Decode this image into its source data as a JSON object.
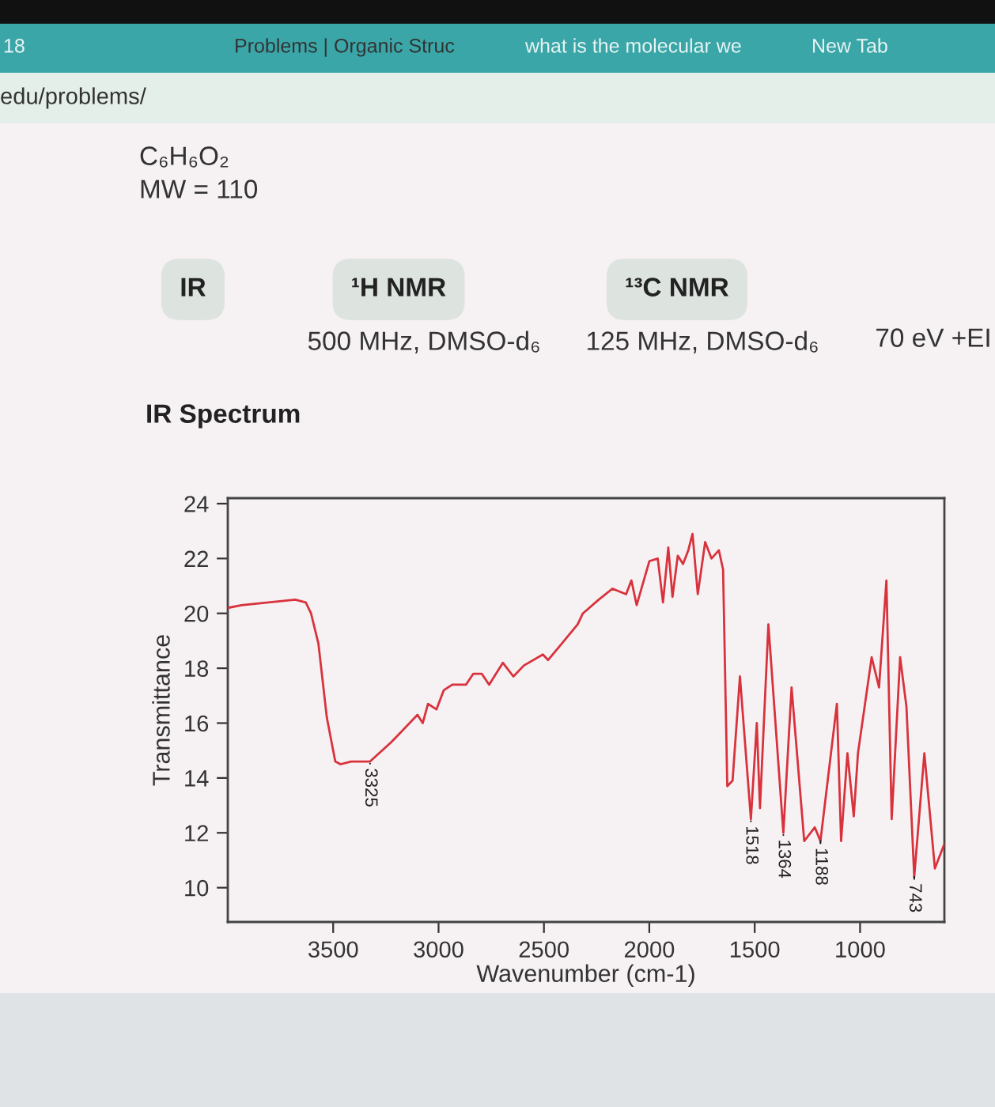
{
  "chart_data": {
    "type": "line",
    "title": "IR Spectrum",
    "xlabel": "Wavenumber (cm-1)",
    "ylabel": "Transmittance",
    "x": [
      4000,
      3935,
      3680,
      3630,
      3605,
      3570,
      3530,
      3490,
      3465,
      3415,
      3355,
      3325,
      3225,
      3100,
      3075,
      3050,
      3010,
      2975,
      2935,
      2870,
      2835,
      2795,
      2760,
      2695,
      2645,
      2595,
      2505,
      2480,
      2415,
      2340,
      2315,
      2240,
      2175,
      2110,
      2085,
      2060,
      2000,
      1960,
      1935,
      1910,
      1890,
      1865,
      1840,
      1815,
      1795,
      1770,
      1735,
      1705,
      1670,
      1650,
      1630,
      1605,
      1570,
      1518,
      1490,
      1475,
      1435,
      1364,
      1325,
      1265,
      1215,
      1188,
      1110,
      1090,
      1060,
      1030,
      1010,
      945,
      910,
      875,
      850,
      810,
      780,
      743,
      695,
      645,
      600
    ],
    "series": [
      {
        "color": "#d8323c",
        "values": [
          20.2,
          20.3,
          20.5,
          20.4,
          20.0,
          18.9,
          16.2,
          14.6,
          14.5,
          14.6,
          14.6,
          14.6,
          15.3,
          16.3,
          16.0,
          16.7,
          16.5,
          17.2,
          17.4,
          17.4,
          17.8,
          17.8,
          17.4,
          18.2,
          17.7,
          18.1,
          18.5,
          18.3,
          18.9,
          19.6,
          20.0,
          20.5,
          20.9,
          20.7,
          21.2,
          20.3,
          21.9,
          22.0,
          20.4,
          22.4,
          20.6,
          22.1,
          21.8,
          22.3,
          22.9,
          20.7,
          22.6,
          22.0,
          22.3,
          21.6,
          13.7,
          13.9,
          17.7,
          12.5,
          16.0,
          12.9,
          19.6,
          12.0,
          17.3,
          11.7,
          12.2,
          11.7,
          16.7,
          11.7,
          14.9,
          12.6,
          14.9,
          18.4,
          17.3,
          21.2,
          12.5,
          18.4,
          16.6,
          10.4,
          14.9,
          10.7,
          11.6
        ]
      }
    ],
    "xlim": [
      4000,
      600
    ],
    "xticks": [
      3500,
      3000,
      2500,
      2000,
      1500,
      1000
    ],
    "ylim": [
      8.75,
      24.2
    ],
    "yticks": [
      10,
      12,
      14,
      16,
      18,
      20,
      22,
      24
    ],
    "annotations": [
      "18",
      "Problems | Organic Struc",
      "what is the molecular we",
      "New Tab",
      "edu/problems/",
      "C₆H₆O₂",
      "MW = 110",
      "IR",
      "¹H NMR",
      "¹³C NMR",
      "500 MHz, DMSO-d₆",
      "125 MHz, DMSO-d₆",
      "70 eV +EI",
      {
        "text": "3325",
        "x": 3325,
        "y": 14.6
      },
      {
        "text": "1518",
        "x": 1518,
        "y": 12.5
      },
      {
        "text": "1364",
        "x": 1364,
        "y": 12.0
      },
      {
        "text": "1188",
        "x": 1188,
        "y": 11.7
      },
      {
        "text": "743",
        "x": 743,
        "y": 10.4
      }
    ]
  }
}
